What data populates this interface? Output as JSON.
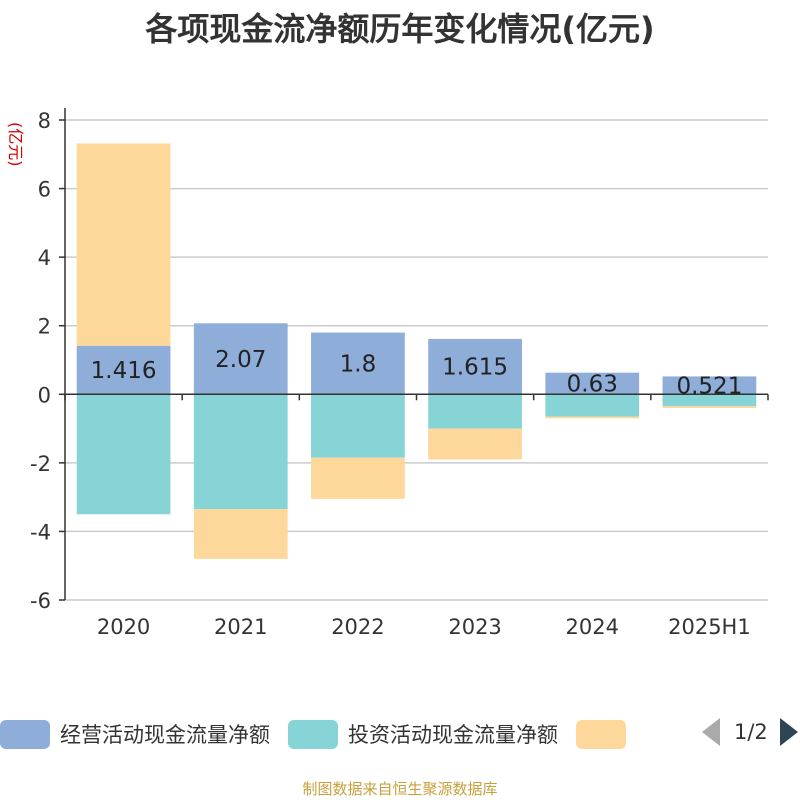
{
  "title": "各项现金流净额历年变化情况(亿元)",
  "source": "制图数据来自恒生聚源数据库",
  "pager": {
    "text": "1/2"
  },
  "chart_data": {
    "type": "bar",
    "stacked": true,
    "ylabel": "(亿元)",
    "ylim": [
      -6,
      8
    ],
    "yticks": [
      -6,
      -4,
      -2,
      0,
      2,
      4,
      6,
      8
    ],
    "grid": true,
    "categories": [
      "2020",
      "2021",
      "2022",
      "2023",
      "2024",
      "2025H1"
    ],
    "series": [
      {
        "name": "经营活动现金流量净额",
        "color": "#8eadd9",
        "values": [
          1.416,
          2.07,
          1.8,
          1.615,
          0.63,
          0.521
        ],
        "labels": [
          "1.416",
          "2.07",
          "1.8",
          "1.615",
          "0.63",
          "0.521"
        ]
      },
      {
        "name": "投资活动现金流量净额",
        "color": "#86d4d6",
        "values": [
          -3.5,
          -3.35,
          -1.85,
          -1.0,
          -0.65,
          -0.35
        ]
      },
      {
        "name": "",
        "color": "#fdd89a",
        "values": [
          5.9,
          -1.45,
          -1.2,
          -0.9,
          -0.05,
          -0.05
        ]
      }
    ],
    "legend": {
      "position": "bottom"
    }
  }
}
